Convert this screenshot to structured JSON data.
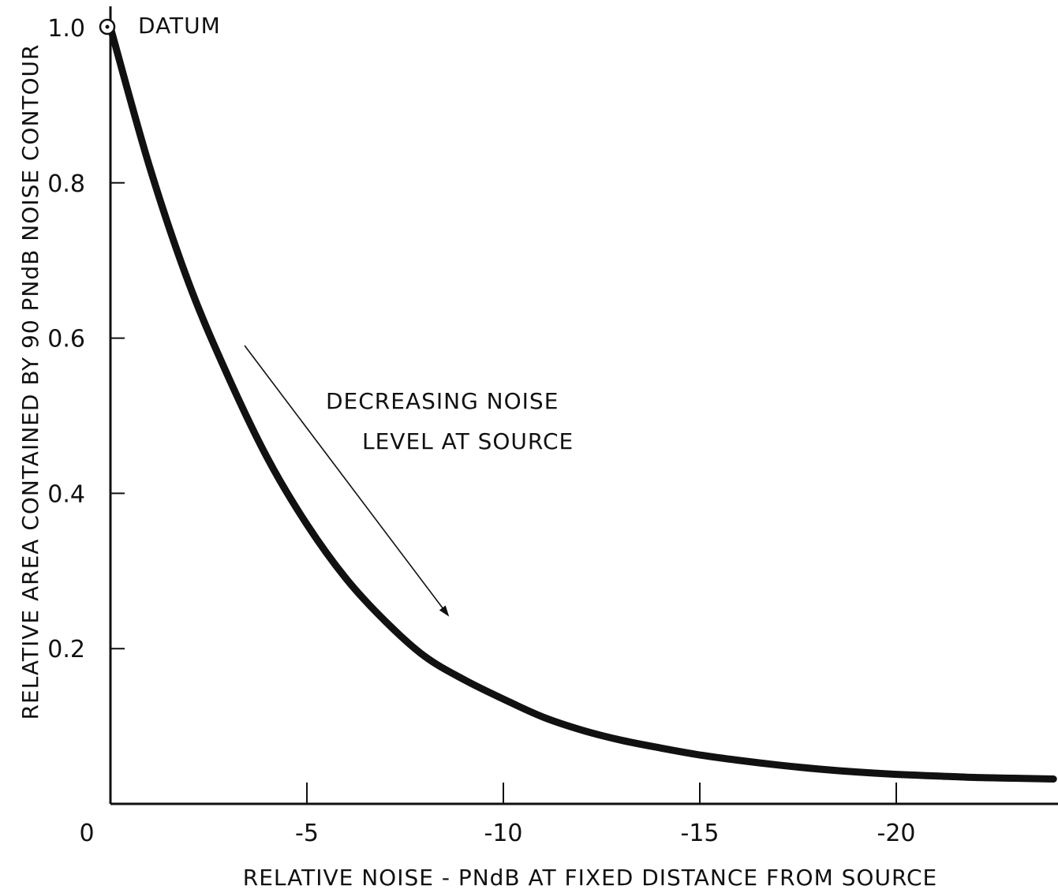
{
  "chart_data": {
    "type": "line",
    "title": "",
    "xlabel": "RELATIVE NOISE - PNdB AT FIXED DISTANCE FROM SOURCE",
    "ylabel": "RELATIVE AREA CONTAINED BY 90 PNdB NOISE CONTOUR",
    "xlim": [
      0,
      -24
    ],
    "ylim": [
      0,
      1.0
    ],
    "x_ticks": [
      0,
      -5,
      -10,
      -15,
      -20
    ],
    "x_tick_labels": [
      "0",
      "-5",
      "-10",
      "-15",
      "-20"
    ],
    "y_ticks": [
      0.2,
      0.4,
      0.6,
      0.8,
      1.0
    ],
    "y_tick_labels": [
      "0.2",
      "0.4",
      "0.6",
      "0.8",
      "1.0"
    ],
    "grid": false,
    "series": [
      {
        "x": [
          0,
          -1,
          -2,
          -3,
          -4,
          -5,
          -6,
          -7,
          -8,
          -9,
          -10,
          -11,
          -12,
          -13,
          -14,
          -15,
          -16,
          -17,
          -18,
          -19,
          -20,
          -21,
          -22,
          -23,
          -24
        ],
        "values": [
          1.0,
          0.82,
          0.67,
          0.55,
          0.445,
          0.36,
          0.29,
          0.235,
          0.19,
          0.16,
          0.135,
          0.112,
          0.095,
          0.082,
          0.072,
          0.063,
          0.056,
          0.05,
          0.045,
          0.041,
          0.038,
          0.036,
          0.034,
          0.033,
          0.032
        ]
      }
    ],
    "annotations": {
      "datum_label": "DATUM",
      "arrow_line1": "DECREASING NOISE",
      "arrow_line2": "LEVEL AT SOURCE"
    }
  }
}
